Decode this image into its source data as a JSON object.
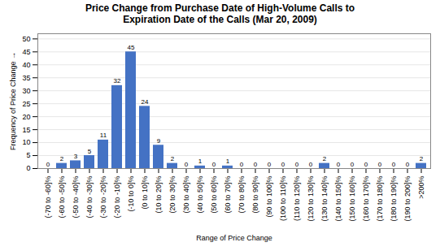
{
  "chart_data": {
    "type": "bar",
    "title": "Price Change from Purchase Date of High-Volume Calls to\nExpiration Date of the Calls (Mar 20, 2009)",
    "xlabel": "Range of Price Change",
    "ylabel": "Frequency of Price Change",
    "categories": [
      "(-70 to -60]%",
      "(-60 to -50]%",
      "(-50 to -40]%",
      "(-40 to -30]%",
      "(-30 to -20]%",
      "(-20 to -10]%",
      "(-10 to 0]%",
      "(0 to 10]%",
      "(10 to 20]%",
      "(20 to 30]%",
      "(30 to 40]%",
      "(40 to 50]%",
      "(50 to 60]%",
      "(60 to 70]%",
      "(70 to 80]%",
      "(80 to 90]%",
      "(90 to 100]%",
      "(100 to 110]%",
      "(110 to 120]%",
      "(120 to 130]%",
      "(130 to 140]%",
      "(140 to 150]%",
      "(150 to 160]%",
      "(160 to 170]%",
      "(170 to 180]%",
      "(180 to 190]%",
      "(190 to 200]%",
      ">200%"
    ],
    "values": [
      0,
      2,
      3,
      5,
      11,
      32,
      45,
      24,
      9,
      2,
      0,
      1,
      0,
      1,
      0,
      0,
      0,
      0,
      0,
      0,
      2,
      0,
      0,
      0,
      0,
      0,
      0,
      2
    ],
    "color": "#4472C4",
    "ylim": [
      0,
      52
    ],
    "yticks": [
      0,
      5,
      10,
      15,
      20,
      25,
      30,
      35,
      40,
      45,
      50
    ],
    "grid": true,
    "data_labels": true
  }
}
